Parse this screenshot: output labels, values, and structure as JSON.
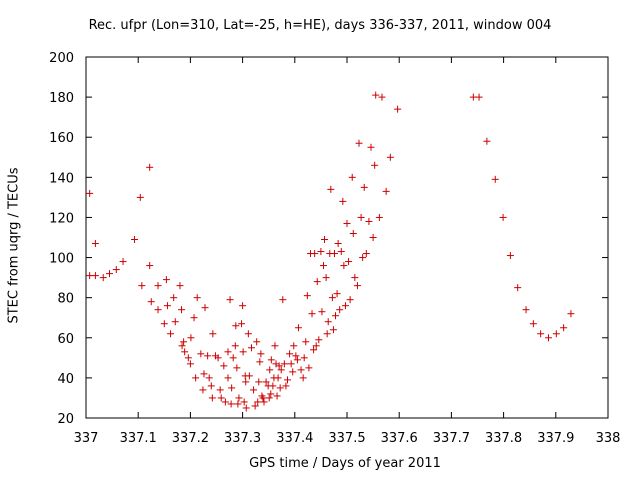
{
  "chart_data": {
    "type": "scatter",
    "title": "Rec. ufpr (Lon=310, Lat=-25, h=HE), days 336-337, 2011, window 004",
    "xlabel": "GPS time / Days of year 2011",
    "ylabel": "STEC from uqrg / TECUs",
    "xlim": [
      337,
      338
    ],
    "ylim": [
      20,
      200
    ],
    "xticks": [
      "337",
      "337.1",
      "337.2",
      "337.3",
      "337.4",
      "337.5",
      "337.6",
      "337.7",
      "337.8",
      "337.9",
      "338"
    ],
    "yticks": [
      "20",
      "40",
      "60",
      "80",
      "100",
      "120",
      "140",
      "160",
      "180",
      "200"
    ],
    "grid": false,
    "marker": "+",
    "color": "#cc0000",
    "points": [
      [
        337.007,
        132
      ],
      [
        337.007,
        91
      ],
      [
        337.018,
        107
      ],
      [
        337.018,
        91
      ],
      [
        337.033,
        90
      ],
      [
        337.045,
        92
      ],
      [
        337.058,
        94
      ],
      [
        337.071,
        98
      ],
      [
        337.093,
        109
      ],
      [
        337.104,
        130
      ],
      [
        337.107,
        86
      ],
      [
        337.122,
        145
      ],
      [
        337.122,
        96
      ],
      [
        337.125,
        78
      ],
      [
        337.138,
        74
      ],
      [
        337.138,
        86
      ],
      [
        337.15,
        67
      ],
      [
        337.154,
        89
      ],
      [
        337.156,
        76
      ],
      [
        337.162,
        62
      ],
      [
        337.168,
        80
      ],
      [
        337.171,
        68
      ],
      [
        337.18,
        86
      ],
      [
        337.183,
        74
      ],
      [
        337.184,
        56
      ],
      [
        337.187,
        58
      ],
      [
        337.189,
        53
      ],
      [
        337.196,
        50
      ],
      [
        337.2,
        47
      ],
      [
        337.201,
        60
      ],
      [
        337.207,
        70
      ],
      [
        337.21,
        40
      ],
      [
        337.213,
        80
      ],
      [
        337.22,
        52
      ],
      [
        337.224,
        34
      ],
      [
        337.226,
        42
      ],
      [
        337.228,
        75
      ],
      [
        337.233,
        51
      ],
      [
        337.236,
        40
      ],
      [
        337.24,
        36
      ],
      [
        337.242,
        30
      ],
      [
        337.243,
        62
      ],
      [
        337.248,
        51
      ],
      [
        337.253,
        50
      ],
      [
        337.257,
        34
      ],
      [
        337.259,
        30
      ],
      [
        337.264,
        46
      ],
      [
        337.267,
        28
      ],
      [
        337.272,
        40
      ],
      [
        337.272,
        53
      ],
      [
        337.276,
        79
      ],
      [
        337.278,
        27
      ],
      [
        337.279,
        35
      ],
      [
        337.282,
        50
      ],
      [
        337.286,
        56
      ],
      [
        337.287,
        66
      ],
      [
        337.289,
        45
      ],
      [
        337.291,
        27
      ],
      [
        337.293,
        30
      ],
      [
        337.298,
        67
      ],
      [
        337.3,
        76
      ],
      [
        337.301,
        53
      ],
      [
        337.303,
        28
      ],
      [
        337.305,
        41
      ],
      [
        337.306,
        38
      ],
      [
        337.307,
        25
      ],
      [
        337.311,
        62
      ],
      [
        337.313,
        41
      ],
      [
        337.317,
        55
      ],
      [
        337.321,
        34
      ],
      [
        337.324,
        26
      ],
      [
        337.327,
        58
      ],
      [
        337.329,
        28
      ],
      [
        337.331,
        38
      ],
      [
        337.333,
        48
      ],
      [
        337.335,
        52
      ],
      [
        337.337,
        31
      ],
      [
        337.339,
        30
      ],
      [
        337.341,
        28
      ],
      [
        337.345,
        38
      ],
      [
        337.349,
        36
      ],
      [
        337.351,
        30
      ],
      [
        337.352,
        44
      ],
      [
        337.354,
        32
      ],
      [
        337.355,
        49
      ],
      [
        337.358,
        36
      ],
      [
        337.36,
        40
      ],
      [
        337.362,
        56
      ],
      [
        337.364,
        47
      ],
      [
        337.366,
        31
      ],
      [
        337.368,
        40
      ],
      [
        337.37,
        46
      ],
      [
        337.372,
        35
      ],
      [
        337.374,
        44
      ],
      [
        337.377,
        79
      ],
      [
        337.38,
        47
      ],
      [
        337.383,
        36
      ],
      [
        337.386,
        39
      ],
      [
        337.39,
        52
      ],
      [
        337.393,
        47
      ],
      [
        337.396,
        43
      ],
      [
        337.398,
        56
      ],
      [
        337.402,
        51
      ],
      [
        337.405,
        49
      ],
      [
        337.407,
        65
      ],
      [
        337.412,
        44
      ],
      [
        337.416,
        40
      ],
      [
        337.418,
        50
      ],
      [
        337.421,
        58
      ],
      [
        337.424,
        81
      ],
      [
        337.427,
        45
      ],
      [
        337.43,
        102
      ],
      [
        337.433,
        72
      ],
      [
        337.436,
        54
      ],
      [
        337.438,
        102
      ],
      [
        337.441,
        56
      ],
      [
        337.443,
        88
      ],
      [
        337.446,
        59
      ],
      [
        337.45,
        103
      ],
      [
        337.452,
        73
      ],
      [
        337.455,
        96
      ],
      [
        337.457,
        109
      ],
      [
        337.46,
        90
      ],
      [
        337.462,
        62
      ],
      [
        337.464,
        68
      ],
      [
        337.467,
        102
      ],
      [
        337.469,
        134
      ],
      [
        337.472,
        80
      ],
      [
        337.474,
        64
      ],
      [
        337.476,
        102
      ],
      [
        337.478,
        71
      ],
      [
        337.481,
        82
      ],
      [
        337.483,
        107
      ],
      [
        337.486,
        74
      ],
      [
        337.489,
        103
      ],
      [
        337.492,
        128
      ],
      [
        337.494,
        96
      ],
      [
        337.497,
        76
      ],
      [
        337.5,
        117
      ],
      [
        337.503,
        98
      ],
      [
        337.506,
        79
      ],
      [
        337.51,
        140
      ],
      [
        337.512,
        112
      ],
      [
        337.515,
        90
      ],
      [
        337.52,
        86
      ],
      [
        337.523,
        157
      ],
      [
        337.527,
        120
      ],
      [
        337.53,
        100
      ],
      [
        337.533,
        135
      ],
      [
        337.537,
        102
      ],
      [
        337.542,
        118
      ],
      [
        337.546,
        155
      ],
      [
        337.55,
        110
      ],
      [
        337.553,
        146
      ],
      [
        337.555,
        181
      ],
      [
        337.562,
        120
      ],
      [
        337.567,
        180
      ],
      [
        337.575,
        133
      ],
      [
        337.583,
        150
      ],
      [
        337.597,
        174
      ],
      [
        337.742,
        180
      ],
      [
        337.753,
        180
      ],
      [
        337.768,
        158
      ],
      [
        337.784,
        139
      ],
      [
        337.799,
        120
      ],
      [
        337.813,
        101
      ],
      [
        337.827,
        85
      ],
      [
        337.843,
        74
      ],
      [
        337.857,
        67
      ],
      [
        337.871,
        62
      ],
      [
        337.886,
        60
      ],
      [
        337.901,
        62
      ],
      [
        337.915,
        65
      ],
      [
        337.929,
        72
      ]
    ]
  }
}
